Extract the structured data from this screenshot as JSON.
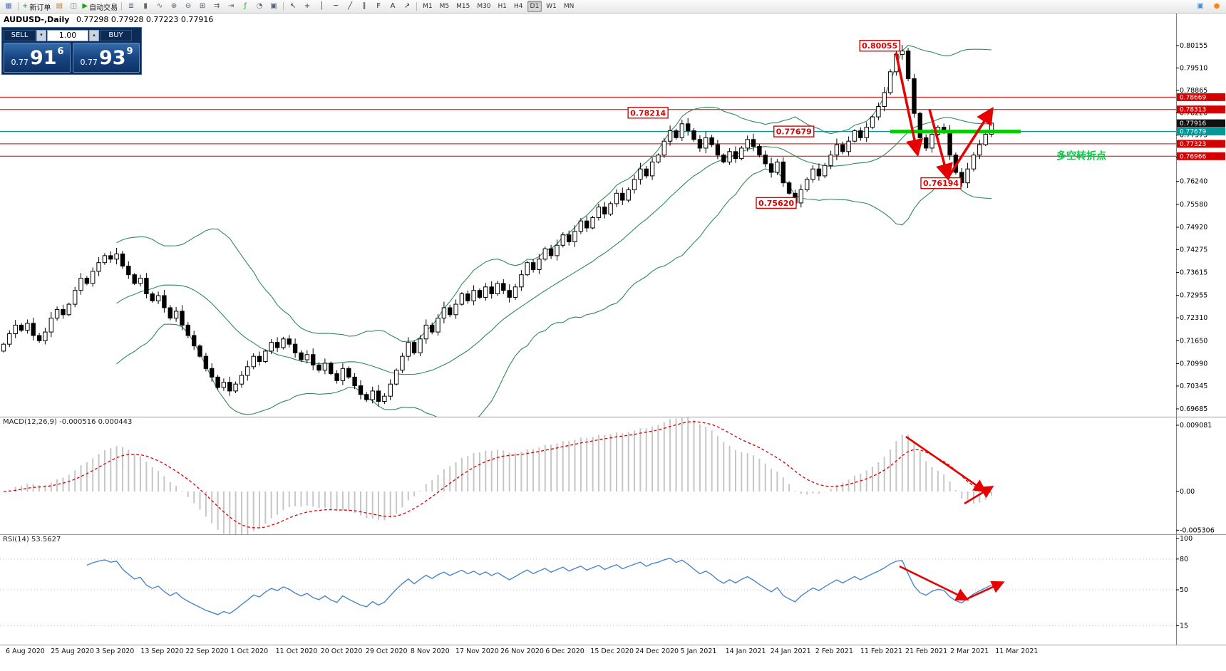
{
  "toolbar": {
    "groups": [
      {
        "items": [
          {
            "name": "chart-windows-icon",
            "glyph": "▦",
            "color": "#5577bb"
          }
        ]
      },
      {
        "items": [
          {
            "name": "new-order-button",
            "glyph": "+",
            "color": "#11aa11",
            "label": "新订单"
          },
          {
            "name": "profiles-icon",
            "glyph": "▤",
            "color": "#bb8833"
          },
          {
            "name": "market-watch-icon",
            "glyph": "◫",
            "color": "#667788"
          },
          {
            "name": "auto-trading-button",
            "glyph": "▶",
            "color": "#11aa11",
            "label": "自动交易"
          }
        ]
      },
      {
        "items": [
          {
            "name": "bar-chart-icon",
            "glyph": "≣",
            "color": "#556677"
          },
          {
            "name": "candlestick-chart-icon",
            "glyph": "▮",
            "color": "#556677"
          },
          {
            "name": "line-chart-icon",
            "glyph": "∿",
            "color": "#556677"
          },
          {
            "name": "zoom-in-icon",
            "glyph": "⊕",
            "color": "#556677"
          },
          {
            "name": "zoom-out-icon",
            "glyph": "⊖",
            "color": "#556677"
          },
          {
            "name": "tile-windows-icon",
            "glyph": "⊞",
            "color": "#556677"
          },
          {
            "name": "auto-scroll-icon",
            "glyph": "⇉",
            "color": "#556677"
          },
          {
            "name": "chart-shift-icon",
            "glyph": "⇥",
            "color": "#556677"
          },
          {
            "name": "indicators-icon",
            "glyph": "ƒ",
            "color": "#11aa11"
          },
          {
            "name": "periods-icon",
            "glyph": "◔",
            "color": "#556677"
          },
          {
            "name": "templates-icon",
            "glyph": "▣",
            "color": "#556677"
          }
        ]
      },
      {
        "items": [
          {
            "name": "cursor-icon",
            "glyph": "↖",
            "color": "#333333"
          },
          {
            "name": "crosshair-icon",
            "glyph": "+",
            "color": "#333333"
          },
          {
            "name": "vertical-line-icon",
            "glyph": "│",
            "color": "#333333"
          },
          {
            "name": "horizontal-line-icon",
            "glyph": "─",
            "color": "#333333"
          },
          {
            "name": "trendline-icon",
            "glyph": "╱",
            "color": "#333333"
          },
          {
            "name": "channel-icon",
            "glyph": "∥",
            "color": "#333333"
          },
          {
            "name": "fibonacci-icon",
            "glyph": "F",
            "color": "#333333"
          },
          {
            "name": "text-icon",
            "glyph": "A",
            "color": "#333333"
          },
          {
            "name": "arrow-tools-icon",
            "glyph": "↗",
            "color": "#333333"
          }
        ]
      }
    ],
    "timeframes": [
      "M1",
      "M5",
      "M15",
      "M30",
      "H1",
      "H4",
      "D1",
      "W1",
      "MN"
    ],
    "active_timeframe": "D1",
    "right_icons": [
      {
        "name": "chart-mode-icon",
        "glyph": "▣",
        "color": "#4a90d2"
      },
      {
        "name": "notification-badge-icon",
        "glyph": "●",
        "color": "#ff8800"
      }
    ]
  },
  "chart_header": {
    "symbol": "AUDUSD-,Daily",
    "ohlc": "0.77298 0.77928 0.77223 0.77916"
  },
  "trade_panel": {
    "sell_label": "SELL",
    "buy_label": "BUY",
    "volume": "1.00",
    "spin_up": "▴",
    "spin_down": "▾",
    "sell_price_small": "0.77",
    "sell_price_big": "91",
    "sell_price_sup": "6",
    "buy_price_small": "0.77",
    "buy_price_big": "93",
    "buy_price_sup": "9"
  },
  "chart_data": [
    {
      "type": "candlestick",
      "symbol": "AUDUSD",
      "timeframe": "Daily",
      "y_max": 0.80155,
      "y_min": 0.69685,
      "y_ticks": [
        "0.80155",
        "0.79510",
        "0.78865",
        "0.78220",
        "0.77575",
        "0.76930",
        "0.76240",
        "0.75580",
        "0.74920",
        "0.74275",
        "0.73615",
        "0.72955",
        "0.72310",
        "0.71650",
        "0.70990",
        "0.70345",
        "0.69685"
      ],
      "closes": [
        0.7155,
        0.7185,
        0.721,
        0.7195,
        0.7215,
        0.718,
        0.7165,
        0.719,
        0.723,
        0.7255,
        0.724,
        0.727,
        0.731,
        0.7345,
        0.733,
        0.7365,
        0.739,
        0.741,
        0.74,
        0.7415,
        0.738,
        0.7355,
        0.733,
        0.7345,
        0.73,
        0.728,
        0.7295,
        0.726,
        0.723,
        0.725,
        0.721,
        0.718,
        0.715,
        0.712,
        0.7085,
        0.706,
        0.703,
        0.7045,
        0.702,
        0.704,
        0.7065,
        0.709,
        0.712,
        0.7105,
        0.7135,
        0.716,
        0.7145,
        0.717,
        0.7155,
        0.713,
        0.711,
        0.7125,
        0.7095,
        0.708,
        0.71,
        0.707,
        0.705,
        0.7085,
        0.706,
        0.7035,
        0.701,
        0.6995,
        0.702,
        0.699,
        0.7005,
        0.704,
        0.708,
        0.712,
        0.716,
        0.713,
        0.717,
        0.721,
        0.719,
        0.723,
        0.726,
        0.724,
        0.727,
        0.73,
        0.728,
        0.731,
        0.729,
        0.732,
        0.73,
        0.733,
        0.731,
        0.729,
        0.732,
        0.7355,
        0.739,
        0.737,
        0.74,
        0.743,
        0.741,
        0.744,
        0.747,
        0.745,
        0.748,
        0.751,
        0.749,
        0.752,
        0.755,
        0.753,
        0.756,
        0.759,
        0.757,
        0.76,
        0.763,
        0.766,
        0.764,
        0.768,
        0.77,
        0.774,
        0.777,
        0.775,
        0.779,
        0.777,
        0.7745,
        0.772,
        0.775,
        0.773,
        0.77,
        0.768,
        0.771,
        0.769,
        0.772,
        0.7745,
        0.7725,
        0.77,
        0.7675,
        0.765,
        0.768,
        0.762,
        0.759,
        0.7562,
        0.76,
        0.763,
        0.766,
        0.764,
        0.767,
        0.77,
        0.773,
        0.771,
        0.774,
        0.777,
        0.775,
        0.778,
        0.781,
        0.784,
        0.788,
        0.794,
        0.799,
        0.8,
        0.792,
        0.782,
        0.775,
        0.772,
        0.776,
        0.778,
        0.777,
        0.77,
        0.765,
        0.762,
        0.766,
        0.77,
        0.773,
        0.776,
        0.7792
      ],
      "bollinger": {
        "period": 20,
        "deviation": 2,
        "color": "#2e8b57"
      },
      "hlines_red": [
        0.78669,
        0.78313,
        0.77323,
        0.76966
      ],
      "hline_labels": [
        "0.78669",
        "0.78313",
        "0.77323",
        "0.76966"
      ],
      "teal_line": {
        "price": 0.77679,
        "label": "0.77679",
        "color": "#009999"
      },
      "bid": {
        "price": 0.77916,
        "label": "0.77916"
      },
      "green_segment": {
        "price": 0.77679,
        "x1": 0.757,
        "x2": 0.868,
        "color": "#00cc00"
      },
      "price_tags": [
        {
          "text": "0.80055",
          "x": 0.748,
          "p": 0.8015
        },
        {
          "text": "0.78214",
          "x": 0.551,
          "p": 0.7822
        },
        {
          "text": "0.77679",
          "x": 0.675,
          "p": 0.7768
        },
        {
          "text": "0.76194",
          "x": 0.8,
          "p": 0.7619
        },
        {
          "text": "0.75620",
          "x": 0.66,
          "p": 0.7562
        }
      ],
      "note": {
        "text": "多空转折点",
        "x": 0.898,
        "p": 0.7688,
        "color": "#00cc44"
      },
      "arrows": [
        {
          "x": 0.762,
          "p": 0.7995,
          "x2": 0.78,
          "p2": 0.7705,
          "head": true
        },
        {
          "x": 0.79,
          "p": 0.7832,
          "x2": 0.806,
          "p2": 0.7635,
          "head": true
        },
        {
          "x": 0.806,
          "p": 0.7635,
          "x2": 0.843,
          "p2": 0.783,
          "head": true
        }
      ]
    },
    {
      "type": "macd",
      "label": "MACD(12,26,9) -0.000516 0.000443",
      "params": [
        12,
        26,
        9
      ],
      "values_shown": [
        "-0.000516",
        "0.000443"
      ],
      "y_ticks": [
        {
          "label": "0.009081",
          "value": 0.009081
        },
        {
          "label": "0.00",
          "value": 0
        },
        {
          "label": "-0.005306",
          "value": -0.005306
        }
      ],
      "histogram_color": "#c6c6c6",
      "signal_color": "#dd0000",
      "arrows": [
        {
          "x": 0.77,
          "y": 0.17,
          "x2": 0.837,
          "y2": 0.63,
          "head": true
        },
        {
          "x": 0.82,
          "y": 0.74,
          "x2": 0.843,
          "y2": 0.6,
          "head": true
        }
      ]
    },
    {
      "type": "rsi",
      "label": "RSI(14) 53.5627",
      "period": 14,
      "value_shown": "53.5627",
      "line_color": "#4a86c8",
      "y_ticks": [
        {
          "label": "100",
          "value": 100
        },
        {
          "label": "80",
          "value": 80
        },
        {
          "label": "50",
          "value": 50
        },
        {
          "label": "15",
          "value": 15
        }
      ],
      "levels": [
        80,
        50,
        15
      ],
      "arrows": [
        {
          "x": 0.765,
          "y": 0.29,
          "x2": 0.822,
          "y2": 0.585,
          "head": true
        },
        {
          "x": 0.822,
          "y": 0.585,
          "x2": 0.852,
          "y2": 0.44,
          "head": true
        }
      ]
    }
  ],
  "x_axis_labels": [
    "6 Aug 2020",
    "25 Aug 2020",
    "3 Sep 2020",
    "13 Sep 2020",
    "22 Sep 2020",
    "1 Oct 2020",
    "11 Oct 2020",
    "20 Oct 2020",
    "29 Oct 2020",
    "8 Nov 2020",
    "17 Nov 2020",
    "26 Nov 2020",
    "6 Dec 2020",
    "15 Dec 2020",
    "24 Dec 2020",
    "5 Jan 2021",
    "14 Jan 2021",
    "24 Jan 2021",
    "2 Feb 2021",
    "11 Feb 2021",
    "21 Feb 2021",
    "2 Mar 2021",
    "11 Mar 2021"
  ]
}
